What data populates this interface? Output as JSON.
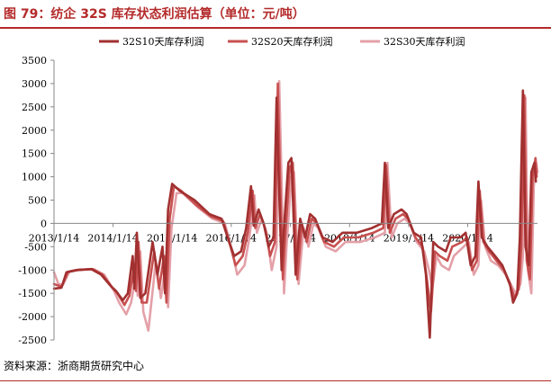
{
  "header": {
    "title": "图 79：纺企 32S 库存状态利润估算（单位：元/吨）"
  },
  "footer": {
    "source": "资料来源：浙商期货研究中心"
  },
  "colors": {
    "title": "#b42a2a",
    "series": [
      "#a23030",
      "#c85050",
      "#e4a0a8"
    ]
  },
  "chart_data": {
    "type": "line",
    "ylim": [
      -2500,
      3500
    ],
    "yticks": [
      3500,
      3000,
      2500,
      2000,
      1500,
      1000,
      500,
      0,
      -500,
      -1000,
      -1500,
      -2000,
      -2500
    ],
    "xlim": [
      "2013-01-14",
      "2021-03-20"
    ],
    "xticks": [
      "2013/1/14",
      "2014/1/14",
      "2015/1/14",
      "2016/1/14",
      "2017/1/14",
      "2018/1/14",
      "2019/1/14",
      "2020/1/14"
    ],
    "legend_position": "top",
    "grid": false,
    "series": [
      {
        "name": "32S10天库存利润",
        "points": [
          [
            "2013-01-14",
            -1400
          ],
          [
            "2013-03-01",
            -1380
          ],
          [
            "2013-04-01",
            -1050
          ],
          [
            "2013-06-01",
            -1000
          ],
          [
            "2013-09-01",
            -980
          ],
          [
            "2013-11-01",
            -1100
          ],
          [
            "2014-01-01",
            -1350
          ],
          [
            "2014-02-01",
            -1450
          ],
          [
            "2014-03-15",
            -1650
          ],
          [
            "2014-04-15",
            -1500
          ],
          [
            "2014-05-15",
            -700
          ],
          [
            "2014-05-25",
            -1400
          ],
          [
            "2014-06-10",
            -200
          ],
          [
            "2014-07-01",
            -1600
          ],
          [
            "2014-08-01",
            -1500
          ],
          [
            "2014-09-15",
            -400
          ],
          [
            "2014-10-15",
            -1100
          ],
          [
            "2014-11-15",
            -500
          ],
          [
            "2014-12-01",
            -1500
          ],
          [
            "2014-12-20",
            300
          ],
          [
            "2015-01-14",
            850
          ],
          [
            "2015-03-01",
            700
          ],
          [
            "2015-06-01",
            500
          ],
          [
            "2015-09-01",
            200
          ],
          [
            "2015-11-15",
            100
          ],
          [
            "2016-01-01",
            -400
          ],
          [
            "2016-02-01",
            -700
          ],
          [
            "2016-03-15",
            -600
          ],
          [
            "2016-04-15",
            -100
          ],
          [
            "2016-05-15",
            800
          ],
          [
            "2016-06-01",
            -50
          ],
          [
            "2016-07-01",
            300
          ],
          [
            "2016-08-01",
            0
          ],
          [
            "2016-09-01",
            -500
          ],
          [
            "2016-10-01",
            -300
          ],
          [
            "2016-10-20",
            2700
          ],
          [
            "2016-11-01",
            1100
          ],
          [
            "2016-11-20",
            -1000
          ],
          [
            "2016-12-01",
            -300
          ],
          [
            "2017-01-01",
            1300
          ],
          [
            "2017-01-20",
            1400
          ],
          [
            "2017-02-15",
            -1100
          ],
          [
            "2017-03-15",
            100
          ],
          [
            "2017-04-15",
            -300
          ],
          [
            "2017-05-15",
            200
          ],
          [
            "2017-06-15",
            100
          ],
          [
            "2017-08-01",
            -300
          ],
          [
            "2017-10-01",
            -400
          ],
          [
            "2017-12-01",
            -200
          ],
          [
            "2018-03-01",
            -200
          ],
          [
            "2018-06-01",
            -100
          ],
          [
            "2018-08-01",
            0
          ],
          [
            "2018-08-20",
            1300
          ],
          [
            "2018-09-10",
            -100
          ],
          [
            "2018-10-15",
            200
          ],
          [
            "2018-12-01",
            300
          ],
          [
            "2019-01-01",
            200
          ],
          [
            "2019-02-15",
            -200
          ],
          [
            "2019-04-01",
            -300
          ],
          [
            "2019-05-01",
            -1100
          ],
          [
            "2019-05-25",
            -2450
          ],
          [
            "2019-06-15",
            -400
          ],
          [
            "2019-07-15",
            -500
          ],
          [
            "2019-09-01",
            -600
          ],
          [
            "2019-10-01",
            -300
          ],
          [
            "2019-12-01",
            -300
          ],
          [
            "2020-01-01",
            -200
          ],
          [
            "2020-02-01",
            -900
          ],
          [
            "2020-03-01",
            -700
          ],
          [
            "2020-03-20",
            900
          ],
          [
            "2020-04-10",
            -300
          ],
          [
            "2020-05-15",
            -500
          ],
          [
            "2020-07-01",
            -700
          ],
          [
            "2020-08-15",
            -900
          ],
          [
            "2020-10-01",
            -1300
          ],
          [
            "2020-10-20",
            -1700
          ],
          [
            "2020-11-15",
            -1500
          ],
          [
            "2020-12-01",
            -300
          ],
          [
            "2020-12-20",
            2850
          ],
          [
            "2021-01-05",
            -500
          ],
          [
            "2021-01-25",
            -900
          ],
          [
            "2021-02-10",
            1100
          ],
          [
            "2021-03-01",
            1300
          ],
          [
            "2021-03-10",
            900
          ]
        ]
      },
      {
        "name": "32S20天库存利润",
        "points": [
          [
            "2013-01-14",
            -1300
          ],
          [
            "2013-03-01",
            -1360
          ],
          [
            "2013-04-10",
            -1040
          ],
          [
            "2013-06-10",
            -1000
          ],
          [
            "2013-09-10",
            -980
          ],
          [
            "2013-11-10",
            -1100
          ],
          [
            "2014-01-10",
            -1380
          ],
          [
            "2014-02-10",
            -1500
          ],
          [
            "2014-03-25",
            -1750
          ],
          [
            "2014-04-25",
            -1550
          ],
          [
            "2014-05-25",
            -900
          ],
          [
            "2014-06-05",
            -1450
          ],
          [
            "2014-06-20",
            -400
          ],
          [
            "2014-07-10",
            -1700
          ],
          [
            "2014-08-10",
            -1700
          ],
          [
            "2014-09-25",
            -600
          ],
          [
            "2014-10-25",
            -1400
          ],
          [
            "2014-11-25",
            -700
          ],
          [
            "2014-12-10",
            -1700
          ],
          [
            "2014-12-30",
            100
          ],
          [
            "2015-01-25",
            800
          ],
          [
            "2015-03-10",
            700
          ],
          [
            "2015-06-10",
            400
          ],
          [
            "2015-09-10",
            150
          ],
          [
            "2015-11-25",
            50
          ],
          [
            "2016-01-10",
            -500
          ],
          [
            "2016-02-10",
            -900
          ],
          [
            "2016-03-25",
            -700
          ],
          [
            "2016-04-25",
            -200
          ],
          [
            "2016-05-25",
            700
          ],
          [
            "2016-06-10",
            -100
          ],
          [
            "2016-07-10",
            200
          ],
          [
            "2016-08-10",
            -100
          ],
          [
            "2016-09-10",
            -700
          ],
          [
            "2016-10-10",
            -400
          ],
          [
            "2016-10-28",
            3000
          ],
          [
            "2016-11-10",
            1000
          ],
          [
            "2016-11-28",
            -1200
          ],
          [
            "2016-12-10",
            -400
          ],
          [
            "2017-01-10",
            1200
          ],
          [
            "2017-01-28",
            1300
          ],
          [
            "2017-02-25",
            -1200
          ],
          [
            "2017-03-25",
            0
          ],
          [
            "2017-04-25",
            -400
          ],
          [
            "2017-05-25",
            100
          ],
          [
            "2017-06-25",
            0
          ],
          [
            "2017-08-10",
            -400
          ],
          [
            "2017-10-10",
            -500
          ],
          [
            "2017-12-10",
            -300
          ],
          [
            "2018-03-10",
            -300
          ],
          [
            "2018-06-10",
            -200
          ],
          [
            "2018-08-10",
            -100
          ],
          [
            "2018-08-28",
            1250
          ],
          [
            "2018-09-20",
            -200
          ],
          [
            "2018-10-25",
            100
          ],
          [
            "2018-12-10",
            200
          ],
          [
            "2019-01-10",
            100
          ],
          [
            "2019-02-25",
            -300
          ],
          [
            "2019-04-10",
            -500
          ],
          [
            "2019-05-10",
            -1300
          ],
          [
            "2019-06-01",
            -1900
          ],
          [
            "2019-06-25",
            -600
          ],
          [
            "2019-07-25",
            -700
          ],
          [
            "2019-09-10",
            -800
          ],
          [
            "2019-10-10",
            -500
          ],
          [
            "2019-12-10",
            -400
          ],
          [
            "2020-01-10",
            -300
          ],
          [
            "2020-02-10",
            -1000
          ],
          [
            "2020-03-10",
            -800
          ],
          [
            "2020-03-28",
            700
          ],
          [
            "2020-04-20",
            -400
          ],
          [
            "2020-05-25",
            -600
          ],
          [
            "2020-07-10",
            -800
          ],
          [
            "2020-08-25",
            -1000
          ],
          [
            "2020-10-10",
            -1400
          ],
          [
            "2020-10-28",
            -1600
          ],
          [
            "2020-11-25",
            -1400
          ],
          [
            "2020-12-10",
            -500
          ],
          [
            "2020-12-28",
            2750
          ],
          [
            "2021-01-12",
            -800
          ],
          [
            "2021-02-01",
            -1200
          ],
          [
            "2021-02-18",
            1000
          ],
          [
            "2021-03-08",
            1400
          ],
          [
            "2021-03-15",
            1000
          ]
        ]
      },
      {
        "name": "32S30天库存利润",
        "points": [
          [
            "2013-01-14",
            -1050
          ],
          [
            "2013-02-10",
            -1300
          ],
          [
            "2013-03-10",
            -1320
          ],
          [
            "2013-04-20",
            -1030
          ],
          [
            "2013-06-20",
            -990
          ],
          [
            "2013-09-20",
            -990
          ],
          [
            "2013-11-20",
            -1100
          ],
          [
            "2014-01-20",
            -1450
          ],
          [
            "2014-02-20",
            -1700
          ],
          [
            "2014-04-05",
            -1950
          ],
          [
            "2014-05-05",
            -1700
          ],
          [
            "2014-06-05",
            -1100
          ],
          [
            "2014-06-15",
            -1550
          ],
          [
            "2014-07-01",
            -600
          ],
          [
            "2014-07-20",
            -1900
          ],
          [
            "2014-08-20",
            -2300
          ],
          [
            "2014-10-05",
            -800
          ],
          [
            "2014-11-05",
            -1600
          ],
          [
            "2014-12-05",
            -900
          ],
          [
            "2014-12-20",
            -1800
          ],
          [
            "2015-01-10",
            -100
          ],
          [
            "2015-02-10",
            650
          ],
          [
            "2015-03-20",
            650
          ],
          [
            "2015-06-20",
            350
          ],
          [
            "2015-09-20",
            100
          ],
          [
            "2015-12-05",
            0
          ],
          [
            "2016-01-20",
            -600
          ],
          [
            "2016-02-20",
            -1100
          ],
          [
            "2016-04-05",
            -900
          ],
          [
            "2016-05-05",
            -300
          ],
          [
            "2016-06-05",
            600
          ],
          [
            "2016-06-20",
            -200
          ],
          [
            "2016-07-20",
            100
          ],
          [
            "2016-08-20",
            -200
          ],
          [
            "2016-09-20",
            -1000
          ],
          [
            "2016-10-20",
            -500
          ],
          [
            "2016-11-05",
            3050
          ],
          [
            "2016-11-20",
            900
          ],
          [
            "2016-12-05",
            -1500
          ],
          [
            "2016-12-20",
            -500
          ],
          [
            "2017-01-20",
            1000
          ],
          [
            "2017-02-05",
            1100
          ],
          [
            "2017-03-05",
            -1300
          ],
          [
            "2017-04-05",
            -100
          ],
          [
            "2017-05-05",
            -500
          ],
          [
            "2017-06-05",
            0
          ],
          [
            "2017-07-05",
            -100
          ],
          [
            "2017-08-20",
            -500
          ],
          [
            "2017-10-20",
            -600
          ],
          [
            "2017-12-20",
            -400
          ],
          [
            "2018-03-20",
            -400
          ],
          [
            "2018-06-20",
            -300
          ],
          [
            "2018-08-20",
            -200
          ],
          [
            "2018-09-05",
            1300
          ],
          [
            "2018-10-01",
            -300
          ],
          [
            "2018-11-05",
            0
          ],
          [
            "2018-12-20",
            100
          ],
          [
            "2019-01-20",
            0
          ],
          [
            "2019-03-05",
            -400
          ],
          [
            "2019-04-20",
            -600
          ],
          [
            "2019-05-20",
            -1000
          ],
          [
            "2019-06-10",
            -1400
          ],
          [
            "2019-07-05",
            -700
          ],
          [
            "2019-08-05",
            -900
          ],
          [
            "2019-09-20",
            -1000
          ],
          [
            "2019-10-20",
            -700
          ],
          [
            "2019-12-20",
            -500
          ],
          [
            "2020-01-20",
            -400
          ],
          [
            "2020-02-20",
            -1100
          ],
          [
            "2020-03-20",
            -900
          ],
          [
            "2020-04-05",
            500
          ],
          [
            "2020-05-01",
            -500
          ],
          [
            "2020-06-05",
            -800
          ],
          [
            "2020-07-20",
            -900
          ],
          [
            "2020-09-05",
            -1100
          ],
          [
            "2020-10-20",
            -1400
          ],
          [
            "2020-11-05",
            -1500
          ],
          [
            "2020-12-05",
            -1300
          ],
          [
            "2020-12-20",
            -700
          ],
          [
            "2021-01-05",
            2700
          ],
          [
            "2021-01-20",
            -1000
          ],
          [
            "2021-02-10",
            -1500
          ],
          [
            "2021-02-25",
            800
          ],
          [
            "2021-03-12",
            1300
          ],
          [
            "2021-03-20",
            1100
          ]
        ]
      }
    ]
  }
}
